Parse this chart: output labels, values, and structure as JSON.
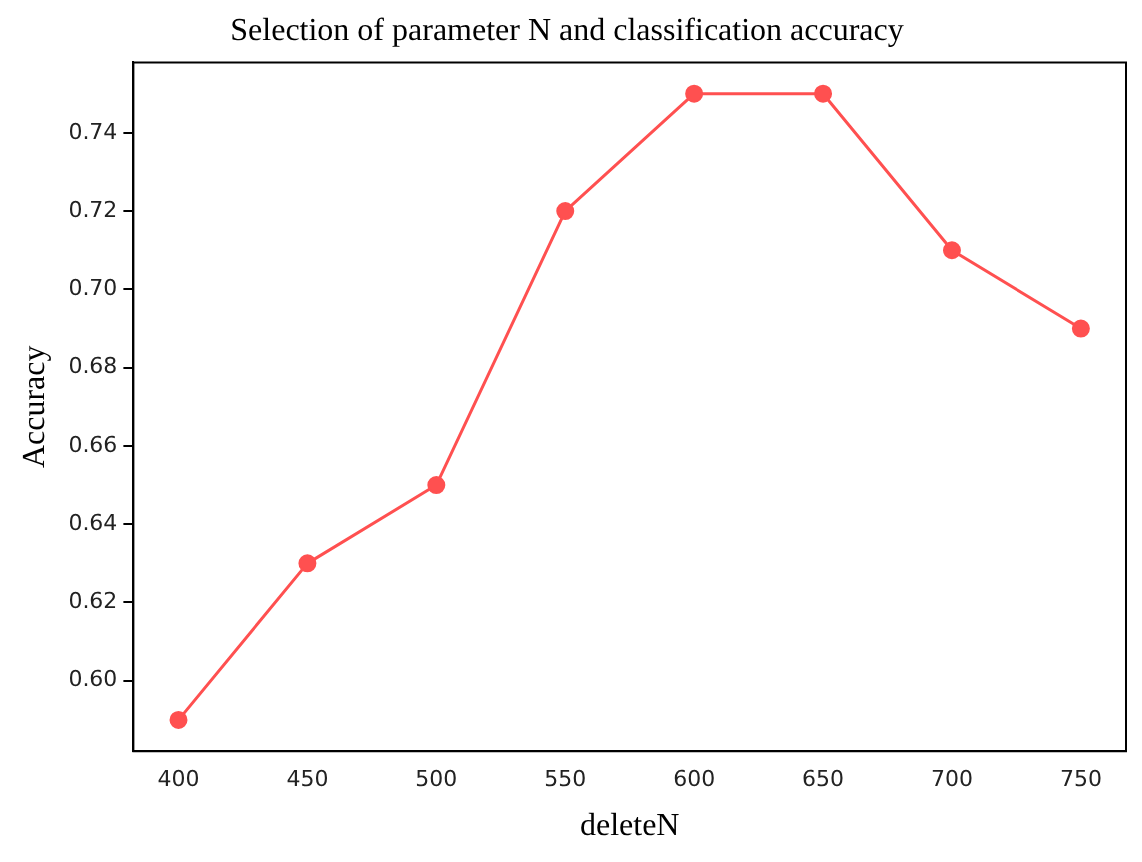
{
  "chart_data": {
    "type": "line",
    "title": "Selection of parameter N and classification accuracy",
    "xlabel": "deleteN",
    "ylabel": "Accuracy",
    "x": [
      400,
      450,
      500,
      550,
      600,
      650,
      700,
      750
    ],
    "series": [
      {
        "color": "#ff5050",
        "values": [
          0.59,
          0.63,
          0.65,
          0.72,
          0.75,
          0.75,
          0.71,
          0.69
        ]
      }
    ],
    "xlim": [
      382.5,
      767.5
    ],
    "xticks": [
      400,
      450,
      500,
      550,
      600,
      650,
      700,
      750
    ],
    "ylim": [
      0.582,
      0.758
    ],
    "yticks": [
      {
        "value": 0.6,
        "label": "0.60"
      },
      {
        "value": 0.62,
        "label": "0.62"
      },
      {
        "value": 0.64,
        "label": "0.64"
      },
      {
        "value": 0.66,
        "label": "0.66"
      },
      {
        "value": 0.68,
        "label": "0.68"
      },
      {
        "value": 0.7,
        "label": "0.70"
      },
      {
        "value": 0.72,
        "label": "0.72"
      },
      {
        "value": 0.74,
        "label": "0.74"
      }
    ],
    "grid": false,
    "legend": false,
    "marker": "circle",
    "line_style": "solid"
  }
}
